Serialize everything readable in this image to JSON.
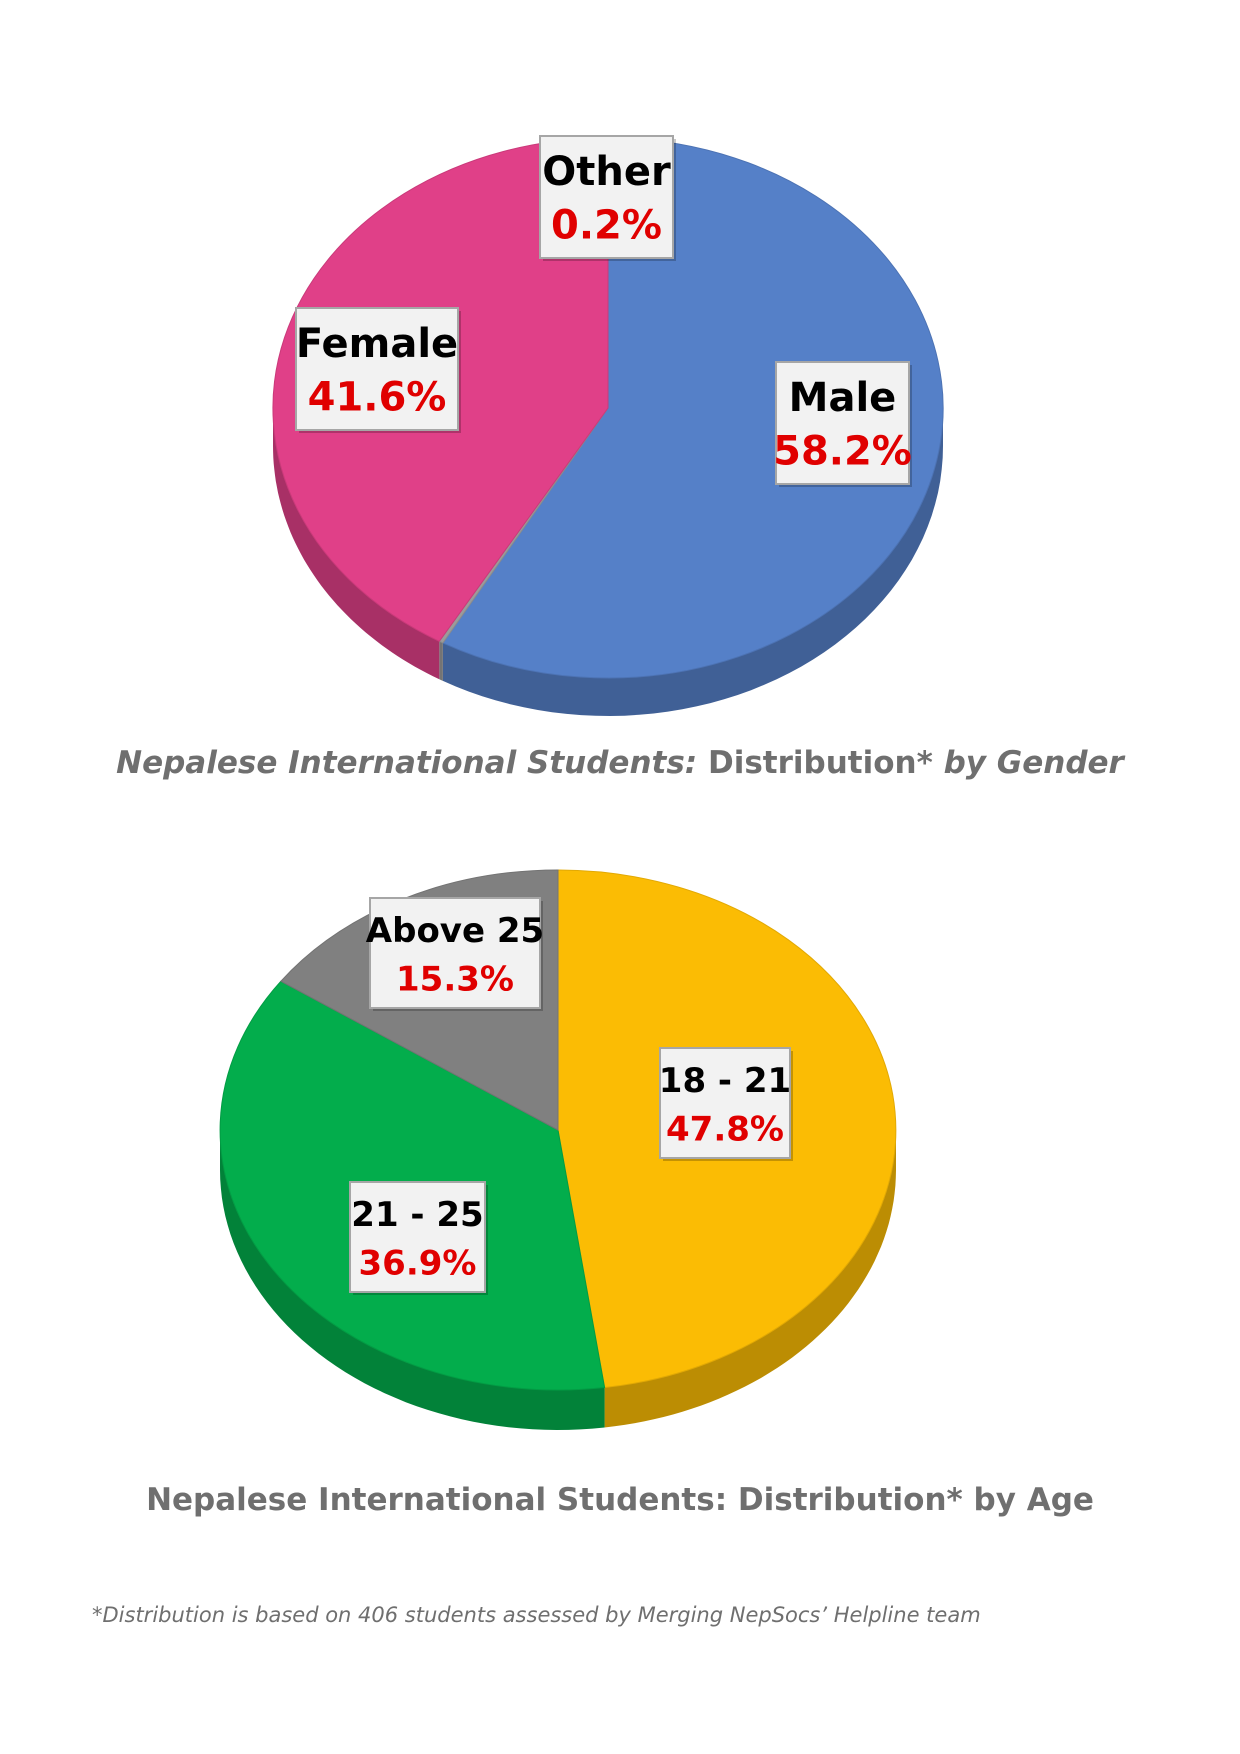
{
  "chart_data": [
    {
      "type": "pie",
      "title_parts": [
        "Nepalese International Students:",
        " Distribution*",
        " by Gender"
      ],
      "slices": [
        {
          "label": "Male",
          "value": 58.2,
          "value_label": "58.2%",
          "color": "#5580c8"
        },
        {
          "label": "Other",
          "value": 0.2,
          "value_label": "0.2%",
          "color": "#9b9b9b"
        },
        {
          "label": "Female",
          "value": 41.6,
          "value_label": "41.6%",
          "color": "#e04088"
        }
      ]
    },
    {
      "type": "pie",
      "title": "Nepalese International Students: Distribution* by Age",
      "slices": [
        {
          "label": "18 - 21",
          "value": 47.8,
          "value_label": "47.8%",
          "color": "#fbbc04"
        },
        {
          "label": "21 - 25",
          "value": 36.9,
          "value_label": "36.9%",
          "color": "#03ad4c"
        },
        {
          "label": "Above 25",
          "value": 15.3,
          "value_label": "15.3%",
          "color": "#808080"
        }
      ]
    }
  ],
  "footnote": "*Distribution is based on 406 students assessed by Merging NepSocs’ Helpline team"
}
